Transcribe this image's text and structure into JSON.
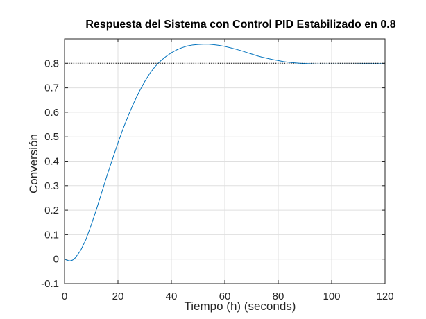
{
  "chart_data": {
    "type": "line",
    "title": "Respuesta del Sistema con Control PID Estabilizado en 0.8",
    "xlabel": "Tiempo (h) (seconds)",
    "ylabel": "Conversión",
    "xlim": [
      0,
      120
    ],
    "ylim": [
      -0.1,
      0.9
    ],
    "xticks": [
      0,
      20,
      40,
      60,
      80,
      100,
      120
    ],
    "xtick_labels": [
      "0",
      "20",
      "40",
      "60",
      "80",
      "100",
      "120"
    ],
    "yticks": [
      -0.1,
      0,
      0.1,
      0.2,
      0.3,
      0.4,
      0.5,
      0.6,
      0.7,
      0.8
    ],
    "ytick_labels": [
      "-0.1",
      "0",
      "0.1",
      "0.2",
      "0.3",
      "0.4",
      "0.5",
      "0.6",
      "0.7",
      "0.8"
    ],
    "grid": true,
    "series": [
      {
        "color": "#0072BD",
        "x": [
          0,
          1,
          2,
          3,
          4,
          6,
          8,
          10,
          12,
          14,
          16,
          18,
          20,
          22,
          24,
          26,
          28,
          30,
          32,
          34,
          36,
          38,
          40,
          42,
          44,
          46,
          48,
          50,
          52,
          54,
          56,
          58,
          60,
          62,
          64,
          66,
          68,
          70,
          72,
          74,
          76,
          78,
          80,
          82,
          84,
          86,
          88,
          90,
          92,
          94,
          96,
          98,
          100,
          104,
          108,
          112,
          116,
          120
        ],
        "y": [
          0.0,
          -0.005,
          -0.007,
          -0.004,
          0.005,
          0.035,
          0.08,
          0.14,
          0.205,
          0.275,
          0.345,
          0.41,
          0.475,
          0.535,
          0.59,
          0.64,
          0.685,
          0.725,
          0.76,
          0.788,
          0.81,
          0.828,
          0.843,
          0.855,
          0.864,
          0.871,
          0.875,
          0.877,
          0.878,
          0.878,
          0.876,
          0.873,
          0.869,
          0.864,
          0.858,
          0.852,
          0.845,
          0.838,
          0.831,
          0.825,
          0.82,
          0.815,
          0.811,
          0.807,
          0.804,
          0.802,
          0.8,
          0.799,
          0.798,
          0.797,
          0.797,
          0.797,
          0.797,
          0.797,
          0.797,
          0.798,
          0.798,
          0.798
        ]
      },
      {
        "style": "dotted",
        "color": "#000000",
        "x": [
          0,
          120
        ],
        "y": [
          0.8,
          0.8
        ]
      }
    ]
  }
}
